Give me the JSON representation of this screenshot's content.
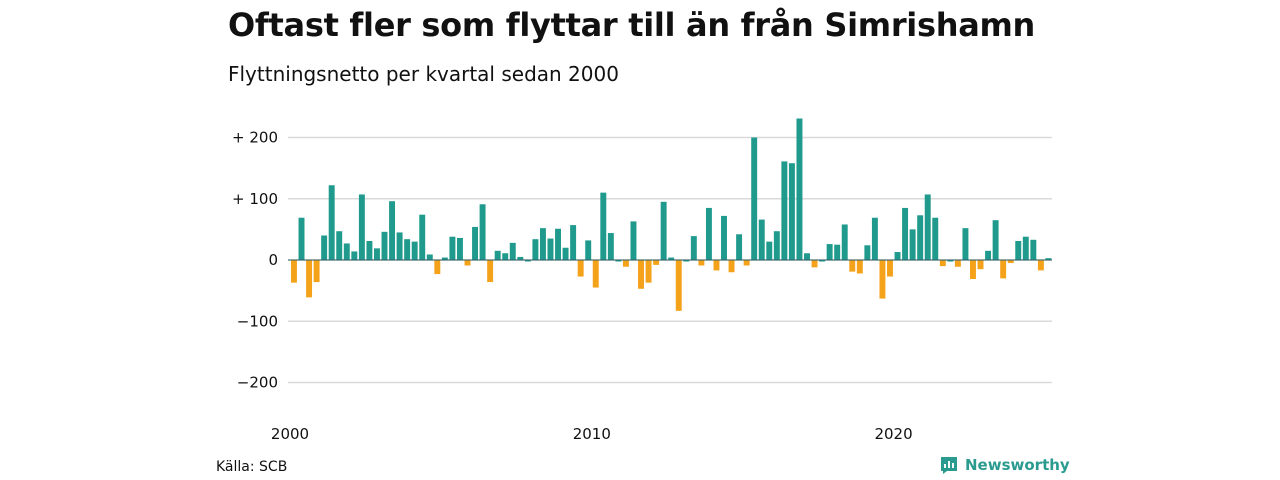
{
  "header": {
    "title": "Oftast fler som flyttar till än från Simrishamn",
    "subtitle": "Flyttningsnetto per kvartal sedan 2000"
  },
  "footer": {
    "source": "Källa: SCB",
    "brand": "Newsworthy",
    "brand_icon": "newsworthy-logo-icon"
  },
  "colors": {
    "positive": "#1f9a8c",
    "negative": "#f5a21b",
    "grid": "#d9d9d9",
    "text": "#111111"
  },
  "chart_data": {
    "type": "bar",
    "title": "Oftast fler som flyttar till än från Simrishamn",
    "subtitle": "Flyttningsnetto per kvartal sedan 2000",
    "xlabel": "",
    "ylabel": "",
    "x_start": "2000 Q1",
    "x_end": "2025 Q1",
    "x_ticks": [
      "2000",
      "2010",
      "2020"
    ],
    "y_ticks": [
      {
        "value": 200,
        "label": "+ 200"
      },
      {
        "value": 100,
        "label": "+ 100"
      },
      {
        "value": 0,
        "label": "0"
      },
      {
        "value": -100,
        "label": "−100"
      },
      {
        "value": -200,
        "label": "−200"
      }
    ],
    "ylim": [
      -225,
      235
    ],
    "grid": true,
    "series": [
      {
        "values": [
          -37,
          69,
          -61,
          -36,
          40,
          122,
          47,
          27,
          14,
          107,
          31,
          19,
          46,
          96,
          45,
          34,
          30,
          74,
          9,
          -23,
          4,
          38,
          36,
          -9,
          54,
          91,
          -36,
          15,
          11,
          28,
          5,
          0,
          34,
          52,
          35,
          51,
          20,
          57,
          -27,
          32,
          -45,
          110,
          44,
          0,
          -11,
          63,
          -47,
          -37,
          -8,
          95,
          4,
          -83,
          0,
          39,
          -9,
          85,
          -17,
          72,
          -20,
          42,
          -9,
          200,
          66,
          30,
          47,
          161,
          158,
          231,
          11,
          -12,
          0,
          26,
          25,
          58,
          -19,
          -22,
          24,
          69,
          -63,
          -27,
          13,
          85,
          50,
          73,
          107,
          69,
          -10,
          0,
          -11,
          52,
          -31,
          -15,
          15,
          65,
          -30,
          -5,
          31,
          38,
          33,
          -17,
          3
        ]
      }
    ]
  }
}
